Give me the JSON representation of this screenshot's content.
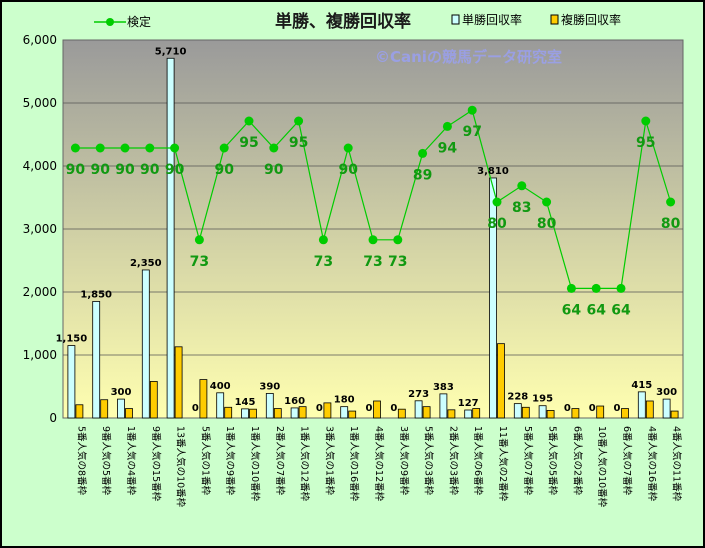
{
  "chart_data": {
    "type": "bar",
    "title": "単勝、複勝回収率",
    "watermark": "©Caniの競馬データ研究室",
    "ylim": [
      0,
      6000
    ],
    "yticks": [
      "0",
      "1,000",
      "2,000",
      "3,000",
      "4,000",
      "5,000",
      "6,000"
    ],
    "categories": [
      "5番人気の8番枠",
      "9番人気の5番枠",
      "1番人気の4番枠",
      "9番人気の15番枠",
      "13番人気の10番枠",
      "5番人気の1番枠",
      "1番人気の9番枠",
      "1番人気の10番枠",
      "2番人気の7番枠",
      "1番人気の12番枠",
      "3番人気の1番枠",
      "1番人気の16番枠",
      "4番人気の12番枠",
      "3番人気の9番枠",
      "5番人気の3番枠",
      "2番人気の3番枠",
      "1番人気の6番枠",
      "11番人気の2番枠",
      "5番人気の7番枠",
      "5番人気の5番枠",
      "6番人気の2番枠",
      "10番人気の10番枠",
      "6番人気の7番枠",
      "4番人気の16番枠",
      "4番人気の11番枠"
    ],
    "series": [
      {
        "name": "単勝回収率",
        "color": "#ccffff",
        "values": [
          1150,
          1850,
          300,
          2350,
          5710,
          0,
          400,
          145,
          390,
          160,
          0,
          180,
          0,
          0,
          273,
          383,
          127,
          3810,
          228,
          195,
          0,
          0,
          0,
          415,
          300
        ],
        "labels": [
          "1,150",
          "1,850",
          "300",
          "2,350",
          "5,710",
          "0",
          "400",
          "145",
          "390",
          "160",
          "0",
          "180",
          "0",
          "0",
          "273",
          "383",
          "127",
          "3,810",
          "228",
          "195",
          "0",
          "0",
          "0",
          "415",
          "300"
        ]
      },
      {
        "name": "複勝回収率",
        "color": "#ffcc00",
        "values": [
          210,
          290,
          150,
          580,
          1130,
          610,
          170,
          140,
          150,
          180,
          240,
          110,
          270,
          140,
          180,
          130,
          150,
          1180,
          170,
          120,
          150,
          190,
          150,
          270,
          110
        ]
      },
      {
        "name": "検定",
        "color": "#00cc00",
        "values": [
          90,
          90,
          90,
          90,
          90,
          73,
          90,
          95,
          90,
          95,
          73,
          90,
          73,
          73,
          89,
          94,
          97,
          80,
          83,
          80,
          64,
          64,
          64,
          95,
          80
        ],
        "labels": [
          "90",
          "90",
          "90",
          "90",
          "90",
          "73",
          "90",
          "95",
          "90",
          "95",
          "73",
          "90",
          "73",
          "73",
          "89",
          "94",
          "97",
          "80",
          "83",
          "80",
          "64",
          "64",
          "64",
          "95",
          "80"
        ]
      }
    ],
    "legend": [
      "検定",
      "単勝回収率",
      "複勝回収率"
    ],
    "grid": true
  }
}
